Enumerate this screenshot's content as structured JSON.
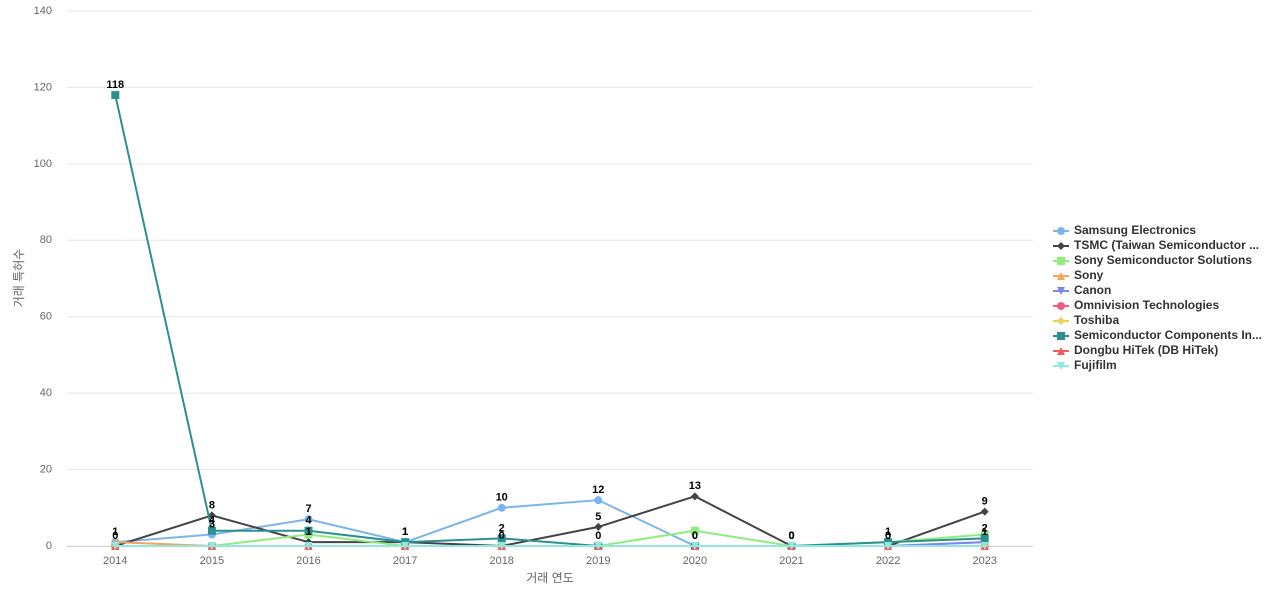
{
  "chart_data": {
    "type": "line",
    "x_label": "거래 연도",
    "y_label": "거래 특허수",
    "categories": [
      "2014",
      "2015",
      "2016",
      "2017",
      "2018",
      "2019",
      "2020",
      "2021",
      "2022",
      "2023"
    ],
    "ylim": [
      0,
      140
    ],
    "yticks": [
      0,
      20,
      40,
      60,
      80,
      100,
      120,
      140
    ],
    "grid": true,
    "legend": "right",
    "series": [
      {
        "name": "Samsung Electronics",
        "color": "#7cb5ec",
        "marker": "circle",
        "data_labels": true,
        "values": [
          1,
          3,
          7,
          1,
          10,
          12,
          0,
          0,
          0,
          1
        ]
      },
      {
        "name": "TSMC (Taiwan Semiconductor ...",
        "color": "#434348",
        "marker": "diamond",
        "data_labels": true,
        "values": [
          0,
          8,
          1,
          1,
          0,
          5,
          13,
          0,
          0,
          9
        ]
      },
      {
        "name": "Sony Semiconductor Solutions",
        "color": "#90ed7d",
        "marker": "square",
        "data_labels": false,
        "values": [
          0,
          0,
          3,
          0,
          0,
          0,
          4,
          0,
          1,
          3
        ]
      },
      {
        "name": "Sony",
        "color": "#f7a35c",
        "marker": "triangle",
        "data_labels": false,
        "values": [
          1,
          0,
          0,
          0,
          0,
          0,
          0,
          0,
          0,
          0
        ]
      },
      {
        "name": "Canon",
        "color": "#8085e9",
        "marker": "triangle-down",
        "data_labels": false,
        "values": [
          0,
          0,
          0,
          0,
          0,
          0,
          0,
          0,
          0,
          1
        ]
      },
      {
        "name": "Omnivision Technologies",
        "color": "#f15c80",
        "marker": "circle",
        "data_labels": false,
        "values": [
          0,
          0,
          0,
          0,
          0,
          0,
          0,
          0,
          0,
          0
        ]
      },
      {
        "name": "Toshiba",
        "color": "#e4d354",
        "marker": "diamond",
        "data_labels": false,
        "values": [
          0,
          0,
          0,
          0,
          0,
          0,
          0,
          0,
          0,
          0
        ]
      },
      {
        "name": "Semiconductor Components In...",
        "color": "#2b908f",
        "marker": "square",
        "data_labels": true,
        "values": [
          118,
          4,
          4,
          1,
          2,
          0,
          0,
          0,
          1,
          2
        ]
      },
      {
        "name": "Dongbu HiTek (DB HiTek)",
        "color": "#f45b5b",
        "marker": "triangle",
        "data_labels": false,
        "values": [
          0,
          0,
          0,
          0,
          0,
          0,
          0,
          0,
          0,
          0
        ]
      },
      {
        "name": "Fujifilm",
        "color": "#91e8e1",
        "marker": "triangle-down",
        "data_labels": false,
        "values": [
          0,
          0,
          0,
          0,
          0,
          0,
          0,
          0,
          0,
          0
        ]
      }
    ]
  }
}
